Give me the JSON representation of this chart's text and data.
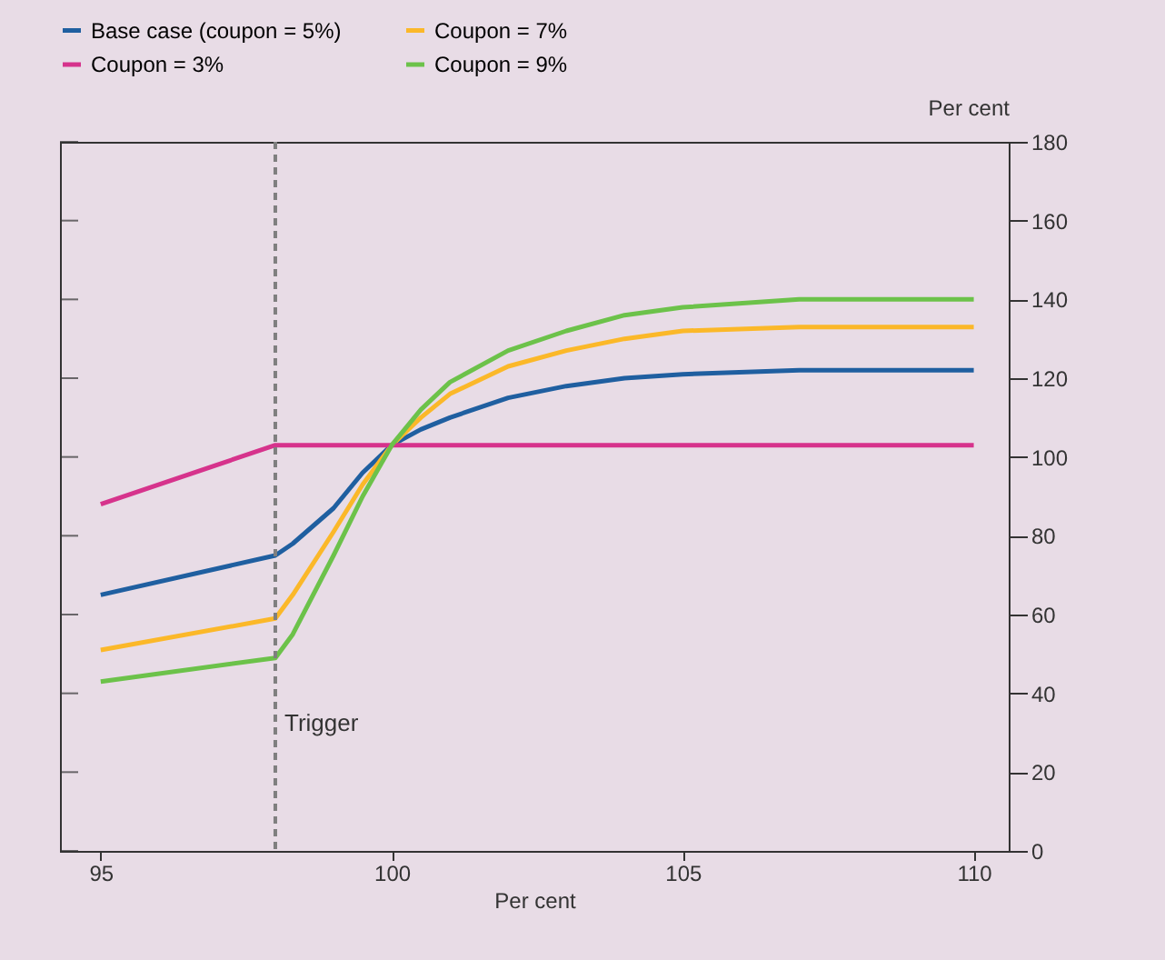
{
  "chart_data": {
    "type": "line",
    "xlabel": "Per cent",
    "ylabel": "Per cent",
    "x": [
      95,
      98,
      98.3,
      99,
      99.5,
      100,
      100.5,
      101,
      102,
      103,
      104,
      105,
      107,
      110
    ],
    "series": [
      {
        "name": "Base case (coupon = 5%)",
        "color": "#1f5fa0",
        "values": [
          65,
          75,
          78,
          87,
          96,
          103,
          107,
          110,
          115,
          118,
          120,
          121,
          122,
          122
        ]
      },
      {
        "name": "Coupon = 7%",
        "color": "#fbb829",
        "values": [
          51,
          59,
          65,
          81,
          93,
          103,
          110,
          116,
          123,
          127,
          130,
          132,
          133,
          133
        ]
      },
      {
        "name": "Coupon = 3%",
        "color": "#d6338c",
        "values": [
          88,
          103,
          103,
          103,
          103,
          103,
          103,
          103,
          103,
          103,
          103,
          103,
          103,
          103
        ]
      },
      {
        "name": "Coupon = 9%",
        "color": "#6cc24a",
        "values": [
          43,
          49,
          55,
          75,
          90,
          103,
          112,
          119,
          127,
          132,
          136,
          138,
          140,
          140
        ]
      }
    ],
    "xlim": [
      94.3,
      110.6
    ],
    "xticks": [
      95,
      100,
      105,
      110
    ],
    "ylim": [
      0,
      180
    ],
    "yticks": [
      0,
      20,
      40,
      60,
      80,
      100,
      120,
      140,
      160,
      180
    ],
    "ref_lines": [
      {
        "axis": "x",
        "value": 98,
        "label": "Trigger",
        "color": "#7f7f7f",
        "line_style": "dashed"
      }
    ],
    "grid": false,
    "legend": "top left",
    "line_style": "solid",
    "marker": "none"
  }
}
